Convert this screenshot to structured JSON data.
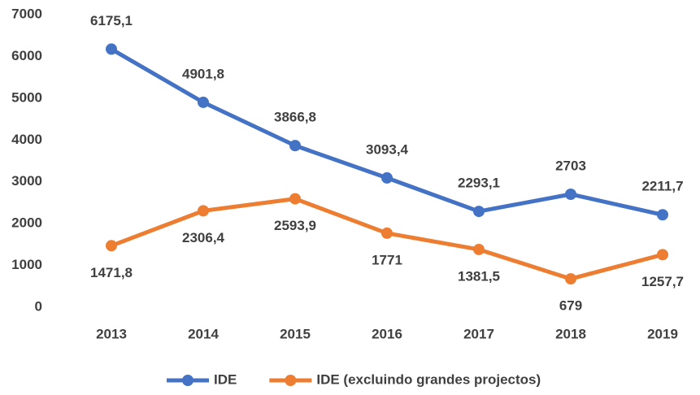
{
  "chart_data": {
    "type": "line",
    "categories": [
      "2013",
      "2014",
      "2015",
      "2016",
      "2017",
      "2018",
      "2019"
    ],
    "series": [
      {
        "name": "IDE",
        "color": "#4472c4",
        "values": [
          6175.1,
          4901.8,
          3866.8,
          3093.4,
          2293.1,
          2703,
          2211.7
        ],
        "value_labels": [
          "6175,1",
          "4901,8",
          "3866,8",
          "3093,4",
          "2293,1",
          "2703",
          "2211,7"
        ]
      },
      {
        "name": "IDE (excluindo grandes projectos)",
        "color": "#ed7d31",
        "values": [
          1471.8,
          2306.4,
          2593.9,
          1771,
          1381.5,
          679,
          1257.7
        ],
        "value_labels": [
          "1471,8",
          "2306,4",
          "2593,9",
          "1771",
          "1381,5",
          "679",
          "1257,7"
        ]
      }
    ],
    "ylim": [
      0,
      7000
    ],
    "yticks": [
      0,
      1000,
      2000,
      3000,
      4000,
      5000,
      6000,
      7000
    ],
    "grid": false,
    "legend": "bottom"
  }
}
